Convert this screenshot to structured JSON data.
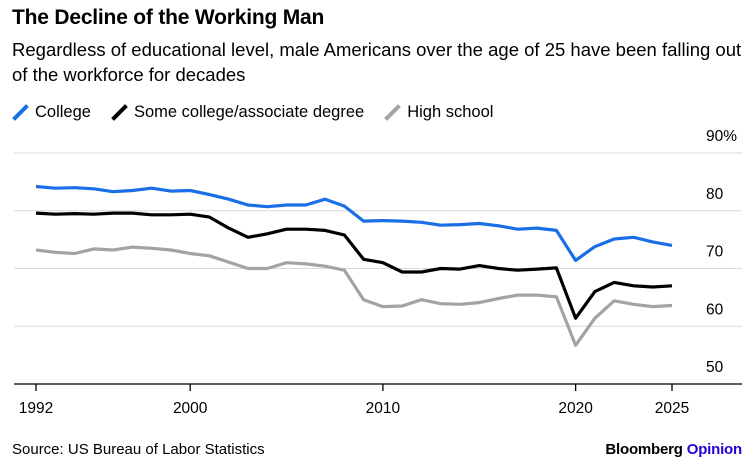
{
  "header": {
    "title": "The Decline of the Working Man",
    "subtitle": "Regardless of educational level, male Americans over the age of 25 have been falling out of the workforce for decades"
  },
  "footer": {
    "source": "Source: US Bureau of Labor Statistics",
    "brand_name": "Bloomberg",
    "brand_section": "Opinion"
  },
  "chart_data": {
    "type": "line",
    "title": "The Decline of the Working Man",
    "subtitle": "Regardless of educational level, male Americans over the age of 25 have been falling out of the workforce for decades",
    "xlim": [
      1992,
      2025
    ],
    "x_ticks": [
      "1992",
      "2000",
      "2010",
      "2020",
      "2025"
    ],
    "ylim": [
      50,
      90
    ],
    "y_ticks": [
      50,
      60,
      70,
      80,
      90
    ],
    "y_tick_labels": [
      "50",
      "60",
      "70",
      "80",
      "90%"
    ],
    "y_axis_side": "right",
    "grid": "horizontal",
    "legend_position": "top-left",
    "x": [
      1992,
      1993,
      1994,
      1995,
      1996,
      1997,
      1998,
      1999,
      2000,
      2001,
      2002,
      2003,
      2004,
      2005,
      2006,
      2007,
      2008,
      2009,
      2010,
      2011,
      2012,
      2013,
      2014,
      2015,
      2016,
      2017,
      2018,
      2019,
      2020,
      2021,
      2022,
      2023,
      2024,
      2025
    ],
    "series": [
      {
        "name": "College",
        "color": "#1a6fe6",
        "values": [
          84.2,
          83.9,
          84.0,
          83.8,
          83.3,
          83.5,
          83.9,
          83.4,
          83.5,
          82.8,
          82.0,
          81.0,
          80.7,
          81.0,
          81.0,
          82.0,
          80.8,
          78.2,
          78.3,
          78.2,
          78.0,
          77.5,
          77.6,
          77.8,
          77.4,
          76.8,
          77.0,
          76.6,
          71.4,
          73.8,
          75.1,
          75.4,
          74.6,
          74.0
        ]
      },
      {
        "name": "Some college/associate degree",
        "color": "#000000",
        "values": [
          79.6,
          79.4,
          79.5,
          79.4,
          79.6,
          79.6,
          79.3,
          79.3,
          79.4,
          78.9,
          77.0,
          75.4,
          76.0,
          76.8,
          76.8,
          76.6,
          75.8,
          71.6,
          71.0,
          69.4,
          69.4,
          70.0,
          69.9,
          70.5,
          70.0,
          69.7,
          69.9,
          70.1,
          61.4,
          66.0,
          67.6,
          67.0,
          66.8,
          67.0
        ]
      },
      {
        "name": "High school",
        "color": "#a3a3a3",
        "values": [
          73.2,
          72.8,
          72.6,
          73.4,
          73.2,
          73.7,
          73.5,
          73.2,
          72.6,
          72.2,
          71.1,
          70.0,
          70.0,
          71.0,
          70.8,
          70.4,
          69.7,
          64.6,
          63.4,
          63.5,
          64.6,
          63.9,
          63.8,
          64.1,
          64.8,
          65.4,
          65.4,
          65.1,
          56.7,
          61.4,
          64.4,
          63.8,
          63.4,
          63.6
        ]
      }
    ]
  }
}
